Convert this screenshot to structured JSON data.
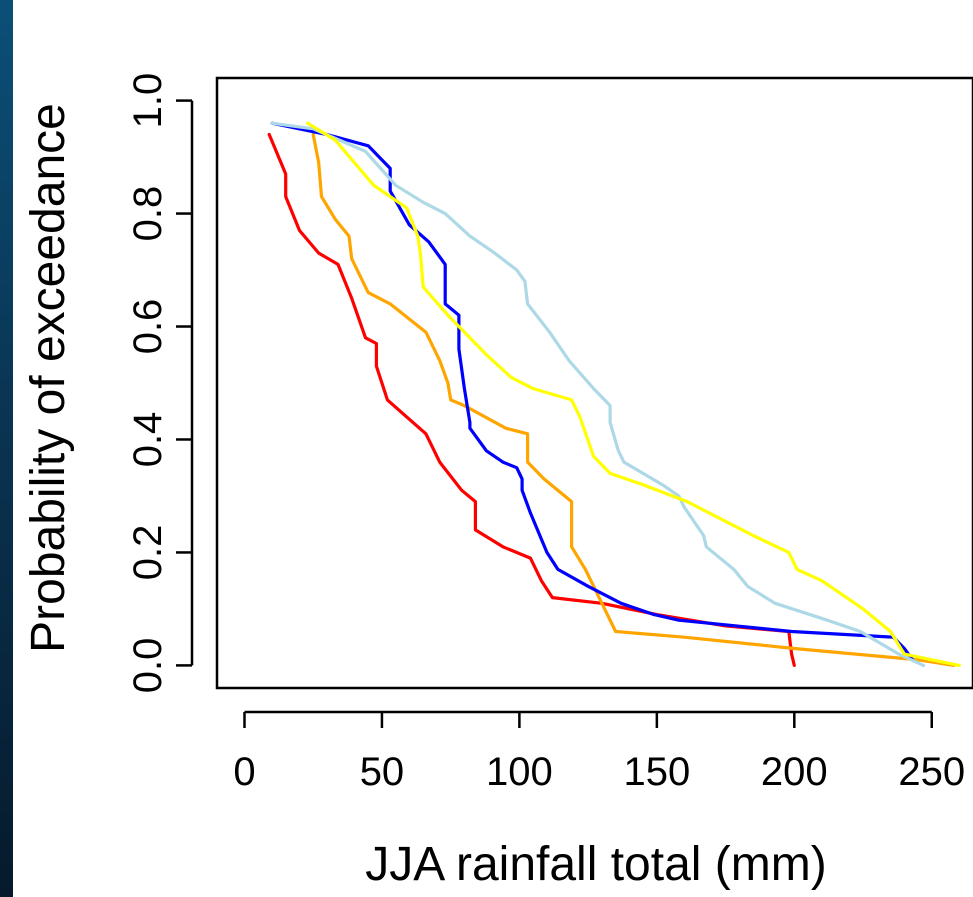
{
  "chart_data": {
    "type": "line",
    "title": "",
    "xlabel": "JJA rainfall total (mm)",
    "ylabel": "Probability of exceedance",
    "xlim": [
      -10,
      265
    ],
    "ylim": [
      -0.04,
      1.04
    ],
    "x_ticks": [
      0,
      50,
      100,
      150,
      200,
      250
    ],
    "x_tick_labels": [
      "0",
      "50",
      "100",
      "150",
      "200",
      "250"
    ],
    "y_ticks": [
      0.0,
      0.2,
      0.4,
      0.6,
      0.8,
      1.0
    ],
    "y_tick_labels": [
      "0.0",
      "0.2",
      "0.4",
      "0.6",
      "0.8",
      "1.0"
    ],
    "grid": false,
    "legend": "none",
    "series": [
      {
        "color": "#ff0000",
        "points": [
          [
            9,
            0.94
          ],
          [
            15,
            0.87
          ],
          [
            15,
            0.83
          ],
          [
            20,
            0.77
          ],
          [
            27,
            0.73
          ],
          [
            34,
            0.71
          ],
          [
            39,
            0.65
          ],
          [
            44,
            0.58
          ],
          [
            48,
            0.57
          ],
          [
            48,
            0.53
          ],
          [
            52,
            0.47
          ],
          [
            59,
            0.44
          ],
          [
            66,
            0.41
          ],
          [
            71,
            0.36
          ],
          [
            79,
            0.31
          ],
          [
            84,
            0.29
          ],
          [
            84,
            0.24
          ],
          [
            94,
            0.21
          ],
          [
            104,
            0.19
          ],
          [
            108,
            0.15
          ],
          [
            112,
            0.12
          ],
          [
            130,
            0.11
          ],
          [
            150,
            0.09
          ],
          [
            175,
            0.07
          ],
          [
            198,
            0.06
          ],
          [
            199,
            0.02
          ],
          [
            200,
            0.0
          ]
        ]
      },
      {
        "color": "#ffa500",
        "points": [
          [
            25,
            0.94
          ],
          [
            27,
            0.89
          ],
          [
            28,
            0.83
          ],
          [
            33,
            0.79
          ],
          [
            38,
            0.76
          ],
          [
            39,
            0.72
          ],
          [
            45,
            0.66
          ],
          [
            53,
            0.64
          ],
          [
            66,
            0.59
          ],
          [
            71,
            0.54
          ],
          [
            74,
            0.5
          ],
          [
            75,
            0.47
          ],
          [
            80,
            0.46
          ],
          [
            95,
            0.42
          ],
          [
            103,
            0.41
          ],
          [
            103,
            0.36
          ],
          [
            109,
            0.33
          ],
          [
            119,
            0.29
          ],
          [
            119,
            0.21
          ],
          [
            124,
            0.17
          ],
          [
            130,
            0.11
          ],
          [
            135,
            0.06
          ],
          [
            160,
            0.05
          ],
          [
            200,
            0.03
          ],
          [
            245,
            0.01
          ],
          [
            258,
            0.0
          ]
        ]
      },
      {
        "color": "#0000ff",
        "points": [
          [
            10,
            0.96
          ],
          [
            30,
            0.94
          ],
          [
            45,
            0.92
          ],
          [
            53,
            0.88
          ],
          [
            53,
            0.84
          ],
          [
            60,
            0.78
          ],
          [
            67,
            0.75
          ],
          [
            73,
            0.71
          ],
          [
            73,
            0.64
          ],
          [
            78,
            0.62
          ],
          [
            78,
            0.56
          ],
          [
            80,
            0.49
          ],
          [
            82,
            0.43
          ],
          [
            82,
            0.42
          ],
          [
            88,
            0.38
          ],
          [
            94,
            0.36
          ],
          [
            99,
            0.35
          ],
          [
            101,
            0.33
          ],
          [
            101,
            0.31
          ],
          [
            104,
            0.27
          ],
          [
            110,
            0.2
          ],
          [
            114,
            0.17
          ],
          [
            125,
            0.14
          ],
          [
            137,
            0.11
          ],
          [
            149,
            0.09
          ],
          [
            158,
            0.08
          ],
          [
            199,
            0.06
          ],
          [
            236,
            0.05
          ],
          [
            240,
            0.03
          ],
          [
            243,
            0.01
          ]
        ]
      },
      {
        "color": "#add8e6",
        "points": [
          [
            10,
            0.96
          ],
          [
            25,
            0.95
          ],
          [
            44,
            0.91
          ],
          [
            55,
            0.85
          ],
          [
            65,
            0.82
          ],
          [
            73,
            0.8
          ],
          [
            82,
            0.76
          ],
          [
            91,
            0.73
          ],
          [
            99,
            0.7
          ],
          [
            102,
            0.68
          ],
          [
            103,
            0.64
          ],
          [
            111,
            0.59
          ],
          [
            118,
            0.54
          ],
          [
            127,
            0.49
          ],
          [
            133,
            0.46
          ],
          [
            133,
            0.43
          ],
          [
            136,
            0.38
          ],
          [
            138,
            0.36
          ],
          [
            145,
            0.34
          ],
          [
            152,
            0.32
          ],
          [
            158,
            0.3
          ],
          [
            160,
            0.28
          ],
          [
            167,
            0.23
          ],
          [
            168,
            0.21
          ],
          [
            178,
            0.17
          ],
          [
            183,
            0.14
          ],
          [
            193,
            0.11
          ],
          [
            212,
            0.08
          ],
          [
            224,
            0.06
          ],
          [
            231,
            0.04
          ],
          [
            238,
            0.02
          ],
          [
            247,
            0.0
          ]
        ]
      },
      {
        "color": "#ffff00",
        "points": [
          [
            23,
            0.96
          ],
          [
            33,
            0.93
          ],
          [
            47,
            0.85
          ],
          [
            53,
            0.83
          ],
          [
            59,
            0.81
          ],
          [
            63,
            0.76
          ],
          [
            64,
            0.73
          ],
          [
            65,
            0.67
          ],
          [
            74,
            0.62
          ],
          [
            82,
            0.58
          ],
          [
            88,
            0.55
          ],
          [
            97,
            0.51
          ],
          [
            105,
            0.49
          ],
          [
            119,
            0.47
          ],
          [
            122,
            0.44
          ],
          [
            127,
            0.37
          ],
          [
            133,
            0.34
          ],
          [
            145,
            0.32
          ],
          [
            161,
            0.29
          ],
          [
            185,
            0.23
          ],
          [
            198,
            0.2
          ],
          [
            201,
            0.17
          ],
          [
            210,
            0.15
          ],
          [
            219,
            0.12
          ],
          [
            225,
            0.1
          ],
          [
            235,
            0.06
          ],
          [
            240,
            0.02
          ],
          [
            250,
            0.01
          ],
          [
            260,
            0.0
          ]
        ]
      }
    ]
  }
}
